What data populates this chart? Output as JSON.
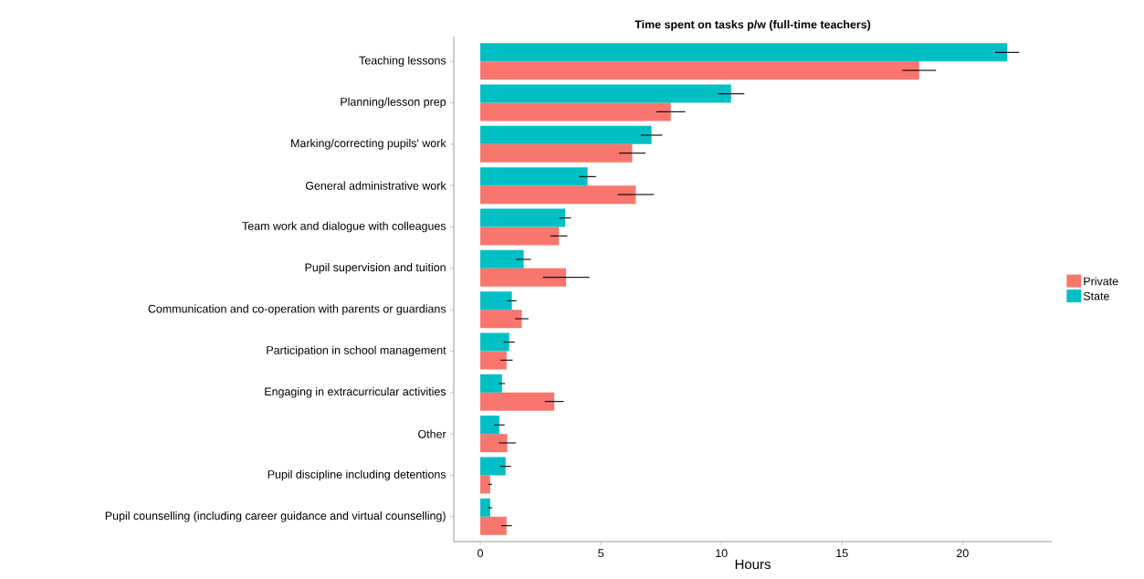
{
  "chart_data": {
    "type": "bar",
    "orientation": "horizontal",
    "title": "Time spent on tasks p/w (full-time teachers)",
    "xlabel": "Hours",
    "categories": [
      "Teaching lessons",
      "Planning/lesson prep",
      "Marking/correcting pupils' work",
      "General administrative work",
      "Team work and dialogue with colleagues",
      "Pupil supervision and tuition",
      "Communication and co-operation with parents or guardians",
      "Participation in school management",
      "Engaging in extracurricular activities",
      "Other",
      "Pupil discipline including detentions",
      "Pupil counselling (including career guidance and virtual counselling)"
    ],
    "series": [
      {
        "name": "Private",
        "color": "#f8766d",
        "values": [
          18.2,
          7.9,
          6.3,
          6.45,
          3.26,
          3.56,
          1.72,
          1.09,
          3.07,
          1.12,
          0.41,
          1.09
        ],
        "errors": [
          0.7,
          0.6,
          0.55,
          0.75,
          0.35,
          0.97,
          0.28,
          0.25,
          0.39,
          0.35,
          0.08,
          0.22
        ]
      },
      {
        "name": "State",
        "color": "#00bfc4",
        "values": [
          21.85,
          10.4,
          7.1,
          4.45,
          3.52,
          1.8,
          1.31,
          1.2,
          0.9,
          0.79,
          1.05,
          0.41
        ],
        "errors": [
          0.5,
          0.55,
          0.45,
          0.35,
          0.24,
          0.3,
          0.19,
          0.23,
          0.13,
          0.22,
          0.22,
          0.09
        ]
      }
    ],
    "xlim": [
      -1.1,
      23.7
    ],
    "xticks": [
      0,
      5,
      10,
      15,
      20
    ],
    "grid": false,
    "legend": "right"
  }
}
